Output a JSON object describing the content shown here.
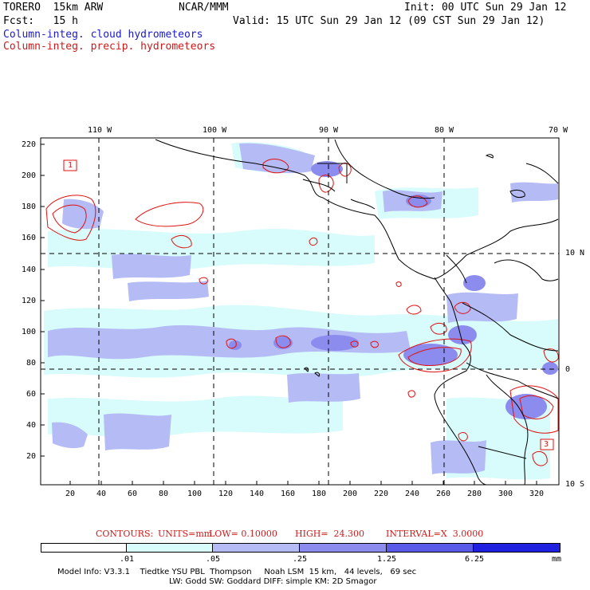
{
  "header": {
    "model": "TORERO  15km ARW",
    "org": "NCAR/MMM",
    "init": "Init: 00 UTC Sun 29 Jan 12",
    "fcst": "Fcst:   15 h",
    "valid": "Valid: 15 UTC Sun 29 Jan 12 (09 CST Sun 29 Jan 12)",
    "field_cloud": "Column-integ. cloud hydrometeors",
    "field_precip": "Column-integ. precip. hydrometeors"
  },
  "top_lon_labels": [
    "110 W",
    "100 W",
    "90 W",
    "80 W",
    "70 W"
  ],
  "left_y_labels": [
    "220",
    "200",
    "180",
    "160",
    "140",
    "120",
    "100",
    "80",
    "60",
    "40",
    "20"
  ],
  "bottom_x_labels": [
    "20",
    "40",
    "60",
    "80",
    "100",
    "120",
    "140",
    "160",
    "180",
    "200",
    "220",
    "240",
    "260",
    "280",
    "300",
    "320"
  ],
  "right_lat_labels": [
    "10 N",
    "0",
    "10 S"
  ],
  "contour_labels": [
    "1",
    "3"
  ],
  "contours_info": {
    "label": "CONTOURS:",
    "units": "UNITS=mm",
    "low": "LOW= 0.10000",
    "high": "HIGH=  24.300",
    "interval": "INTERVAL=X  3.0000"
  },
  "colorbar": {
    "ticks": [
      ".01",
      ".05",
      ".25",
      "1.25",
      "6.25"
    ],
    "unit": "mm",
    "colors": [
      "#ffffff",
      "#d8fbfb",
      "#b4bbf5",
      "#8c8cee",
      "#5a5ae8",
      "#2020e0"
    ]
  },
  "model_info_line1": "Model Info: V3.3.1    Tiedtke YSU PBL  Thompson     Noah LSM  15 km,   44 levels,   69 sec",
  "model_info_line2": "LW: Godd SW: Goddard DIFF: simple KM: 2D Smagor"
}
